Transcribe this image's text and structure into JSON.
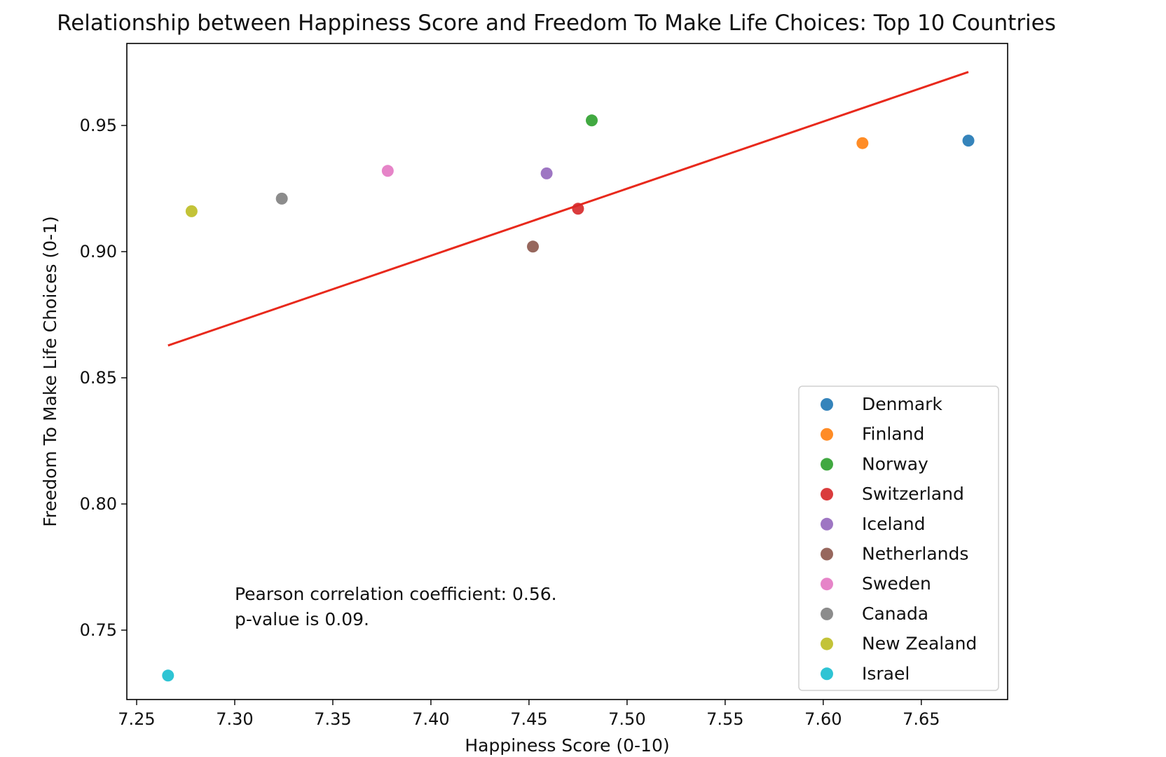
{
  "chart_data": {
    "type": "scatter",
    "title": "Relationship between Happiness Score and Freedom To Make Life Choices: Top 10 Countries",
    "xlabel": "Happiness Score (0-10)",
    "ylabel": "Freedom To Make Life Choices (0-1)",
    "xlim": [
      7.245,
      7.694
    ],
    "ylim": [
      0.7225,
      0.9825
    ],
    "xticks": [
      "7.25",
      "7.30",
      "7.35",
      "7.40",
      "7.45",
      "7.50",
      "7.55",
      "7.60",
      "7.65"
    ],
    "yticks": [
      "0.75",
      "0.80",
      "0.85",
      "0.90",
      "0.95"
    ],
    "grid": false,
    "legend_position": "lower-right",
    "series": [
      {
        "name": "Denmark",
        "color": "#1f77b4",
        "x": 7.674,
        "y": 0.944
      },
      {
        "name": "Finland",
        "color": "#ff7f0e",
        "x": 7.62,
        "y": 0.943
      },
      {
        "name": "Norway",
        "color": "#2ca02c",
        "x": 7.482,
        "y": 0.952
      },
      {
        "name": "Switzerland",
        "color": "#d62728",
        "x": 7.475,
        "y": 0.917
      },
      {
        "name": "Iceland",
        "color": "#9467bd",
        "x": 7.459,
        "y": 0.931
      },
      {
        "name": "Netherlands",
        "color": "#8c564b",
        "x": 7.452,
        "y": 0.902
      },
      {
        "name": "Sweden",
        "color": "#e377c2",
        "x": 7.378,
        "y": 0.932
      },
      {
        "name": "Canada",
        "color": "#7f7f7f",
        "x": 7.324,
        "y": 0.921
      },
      {
        "name": "New Zealand",
        "color": "#bcbd22",
        "x": 7.278,
        "y": 0.916
      },
      {
        "name": "Israel",
        "color": "#17becf",
        "x": 7.266,
        "y": 0.732
      }
    ],
    "regression_line": {
      "color": "#e8291c",
      "x": [
        7.266,
        7.674
      ],
      "y": [
        0.8628,
        0.9712
      ]
    },
    "annotations": [
      "Pearson correlation coefficient: 0.56.",
      "p-value is 0.09."
    ]
  }
}
